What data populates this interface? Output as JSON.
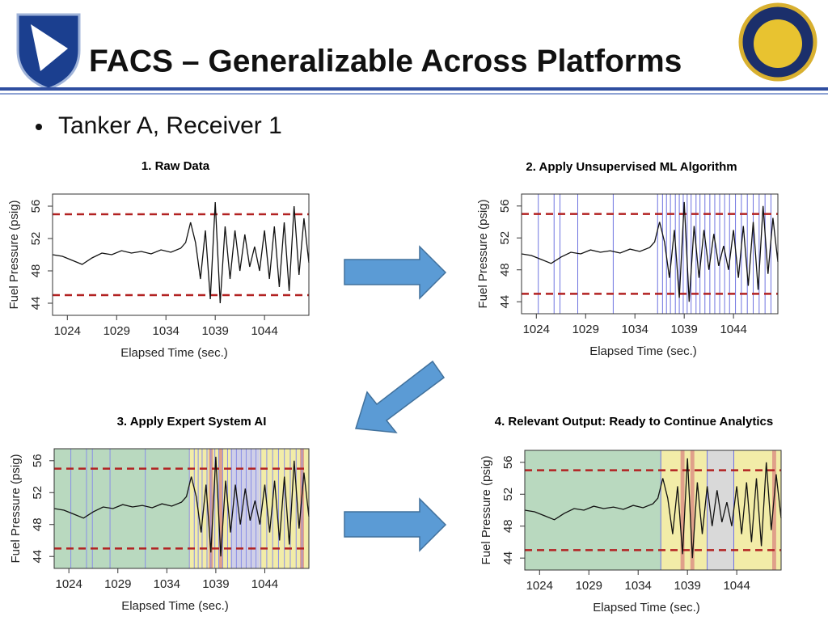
{
  "slide": {
    "title": "FACS – Generalizable Across Platforms",
    "bullet": "Tanker A, Receiver 1"
  },
  "chart_data": [
    {
      "type": "line",
      "title": "1. Raw Data",
      "xlabel": "Elapsed Time (sec.)",
      "ylabel": "Fuel Pressure (psig)",
      "xlim": [
        1022.5,
        1048.5
      ],
      "ylim": [
        42.5,
        57.5
      ],
      "xticks": [
        1024,
        1029,
        1034,
        1039,
        1044
      ],
      "yticks": [
        44,
        48,
        52,
        56
      ],
      "x": [
        1022.5,
        1023.5,
        1024.5,
        1025.5,
        1026.5,
        1027.5,
        1028.5,
        1029.5,
        1030.5,
        1031.5,
        1032.5,
        1033.5,
        1034.5,
        1035.5,
        1036,
        1036.5,
        1037,
        1037.5,
        1038,
        1038.5,
        1039,
        1039.5,
        1040,
        1040.5,
        1041,
        1041.5,
        1042,
        1042.5,
        1043,
        1043.5,
        1044,
        1044.5,
        1045,
        1045.5,
        1046,
        1046.5,
        1047,
        1047.5,
        1048,
        1048.5
      ],
      "series": [
        {
          "color": "#111111",
          "values": [
            50,
            49.8,
            49.3,
            48.8,
            49.6,
            50.2,
            50,
            50.5,
            50.2,
            50.4,
            50.1,
            50.6,
            50.3,
            50.8,
            51.5,
            54,
            51.5,
            47,
            53,
            44.5,
            56.5,
            44,
            53.5,
            47,
            53,
            48,
            52.5,
            48.5,
            51,
            48,
            53,
            47,
            53.5,
            46,
            54,
            45.5,
            56,
            47.5,
            54.5,
            49
          ]
        }
      ],
      "hlines": [
        55,
        45
      ],
      "hline_color": "#b22222"
    },
    {
      "type": "line",
      "title": "2. Apply Unsupervised ML Algorithm",
      "xlabel": "Elapsed Time (sec.)",
      "ylabel": "Fuel Pressure (psig)",
      "xlim": [
        1022.5,
        1048.5
      ],
      "ylim": [
        42.5,
        57.5
      ],
      "xticks": [
        1024,
        1029,
        1034,
        1039,
        1044
      ],
      "yticks": [
        44,
        48,
        52,
        56
      ],
      "x": [
        1022.5,
        1023.5,
        1024.5,
        1025.5,
        1026.5,
        1027.5,
        1028.5,
        1029.5,
        1030.5,
        1031.5,
        1032.5,
        1033.5,
        1034.5,
        1035.5,
        1036,
        1036.5,
        1037,
        1037.5,
        1038,
        1038.5,
        1039,
        1039.5,
        1040,
        1040.5,
        1041,
        1041.5,
        1042,
        1042.5,
        1043,
        1043.5,
        1044,
        1044.5,
        1045,
        1045.5,
        1046,
        1046.5,
        1047,
        1047.5,
        1048,
        1048.5
      ],
      "series": [
        {
          "color": "#111111",
          "values": [
            50,
            49.8,
            49.3,
            48.8,
            49.6,
            50.2,
            50,
            50.5,
            50.2,
            50.4,
            50.1,
            50.6,
            50.3,
            50.8,
            51.5,
            54,
            51.5,
            47,
            53,
            44.5,
            56.5,
            44,
            53.5,
            47,
            53,
            48,
            52.5,
            48.5,
            51,
            48,
            53,
            47,
            53.5,
            46,
            54,
            45.5,
            56,
            47.5,
            54.5,
            49
          ]
        }
      ],
      "hlines": [
        55,
        45
      ],
      "hline_color": "#b22222",
      "vlines": [
        1024.2,
        1025.8,
        1026.4,
        1028.2,
        1031.8,
        1036.3,
        1036.8,
        1037.2,
        1037.6,
        1038.1,
        1038.5,
        1038.9,
        1039.3,
        1039.7,
        1040.2,
        1040.6,
        1041.1,
        1041.6,
        1042.1,
        1042.6,
        1043.1,
        1043.6,
        1044.2,
        1044.8,
        1045.4,
        1046,
        1046.6,
        1047.2,
        1047.8
      ],
      "vline_color": "#6f74e0"
    },
    {
      "type": "line",
      "title": "3. Apply Expert System AI",
      "xlabel": "Elapsed Time (sec.)",
      "ylabel": "Fuel Pressure (psig)",
      "xlim": [
        1022.5,
        1048.5
      ],
      "ylim": [
        42.5,
        57.5
      ],
      "xticks": [
        1024,
        1029,
        1034,
        1039,
        1044
      ],
      "yticks": [
        44,
        48,
        52,
        56
      ],
      "x": [
        1022.5,
        1023.5,
        1024.5,
        1025.5,
        1026.5,
        1027.5,
        1028.5,
        1029.5,
        1030.5,
        1031.5,
        1032.5,
        1033.5,
        1034.5,
        1035.5,
        1036,
        1036.5,
        1037,
        1037.5,
        1038,
        1038.5,
        1039,
        1039.5,
        1040,
        1040.5,
        1041,
        1041.5,
        1042,
        1042.5,
        1043,
        1043.5,
        1044,
        1044.5,
        1045,
        1045.5,
        1046,
        1046.5,
        1047,
        1047.5,
        1048,
        1048.5
      ],
      "series": [
        {
          "color": "#111111",
          "values": [
            50,
            49.8,
            49.3,
            48.8,
            49.6,
            50.2,
            50,
            50.5,
            50.2,
            50.4,
            50.1,
            50.6,
            50.3,
            50.8,
            51.5,
            54,
            51.5,
            47,
            53,
            44.5,
            56.5,
            44,
            53.5,
            47,
            53,
            48,
            52.5,
            48.5,
            51,
            48,
            53,
            47,
            53.5,
            46,
            54,
            45.5,
            56,
            47.5,
            54.5,
            49
          ]
        }
      ],
      "hlines": [
        55,
        45
      ],
      "hline_color": "#b22222",
      "regions": [
        {
          "x0": 1022.5,
          "x1": 1036.3,
          "color": "#b9d9bf"
        },
        {
          "x0": 1036.3,
          "x1": 1040.5,
          "color": "#f2eca8"
        },
        {
          "x0": 1040.5,
          "x1": 1043.5,
          "color": "#cfcfe8"
        },
        {
          "x0": 1043.5,
          "x1": 1048.5,
          "color": "#f2eca8"
        },
        {
          "x0": 1038.3,
          "x1": 1038.7,
          "color": "#e0a08a"
        },
        {
          "x0": 1039.3,
          "x1": 1039.7,
          "color": "#e0a08a"
        },
        {
          "x0": 1047.6,
          "x1": 1048,
          "color": "#e0a08a"
        }
      ],
      "vlines": [
        1024.2,
        1025.8,
        1026.4,
        1028.2,
        1031.8,
        1036.3,
        1036.8,
        1037.2,
        1037.6,
        1038.1,
        1038.5,
        1038.9,
        1039.3,
        1039.7,
        1040.2,
        1040.6,
        1041.1,
        1041.6,
        1042.1,
        1042.6,
        1043.1,
        1043.6,
        1044.2,
        1044.8,
        1045.4,
        1046,
        1046.6,
        1047.2,
        1047.8
      ],
      "vline_color": "#8a8fe6"
    },
    {
      "type": "line",
      "title": "4. Relevant Output: Ready to Continue Analytics",
      "xlabel": "Elapsed Time (sec.)",
      "ylabel": "Fuel Pressure (psig)",
      "xlim": [
        1022.5,
        1048.5
      ],
      "ylim": [
        42.5,
        57.5
      ],
      "xticks": [
        1024,
        1029,
        1034,
        1039,
        1044
      ],
      "yticks": [
        44,
        48,
        52,
        56
      ],
      "x": [
        1022.5,
        1023.5,
        1024.5,
        1025.5,
        1026.5,
        1027.5,
        1028.5,
        1029.5,
        1030.5,
        1031.5,
        1032.5,
        1033.5,
        1034.5,
        1035.5,
        1036,
        1036.5,
        1037,
        1037.5,
        1038,
        1038.5,
        1039,
        1039.5,
        1040,
        1040.5,
        1041,
        1041.5,
        1042,
        1042.5,
        1043,
        1043.5,
        1044,
        1044.5,
        1045,
        1045.5,
        1046,
        1046.5,
        1047,
        1047.5,
        1048,
        1048.5
      ],
      "series": [
        {
          "color": "#111111",
          "values": [
            50,
            49.8,
            49.3,
            48.8,
            49.6,
            50.2,
            50,
            50.5,
            50.2,
            50.4,
            50.1,
            50.6,
            50.3,
            50.8,
            51.5,
            54,
            51.5,
            47,
            53,
            44.5,
            56.5,
            44,
            53.5,
            47,
            53,
            48,
            52.5,
            48.5,
            51,
            48,
            53,
            47,
            53.5,
            46,
            54,
            45.5,
            56,
            47.5,
            54.5,
            49
          ]
        }
      ],
      "hlines": [
        55,
        45
      ],
      "hline_color": "#b22222",
      "regions": [
        {
          "x0": 1022.5,
          "x1": 1036.3,
          "color": "#b9d9bf"
        },
        {
          "x0": 1036.3,
          "x1": 1041,
          "color": "#f2eca8"
        },
        {
          "x0": 1041,
          "x1": 1043.7,
          "color": "#d9d9d9"
        },
        {
          "x0": 1043.7,
          "x1": 1048.5,
          "color": "#f2eca8"
        },
        {
          "x0": 1038.3,
          "x1": 1038.7,
          "color": "#e0a08a"
        },
        {
          "x0": 1039.3,
          "x1": 1039.7,
          "color": "#e0a08a"
        },
        {
          "x0": 1047.6,
          "x1": 1048,
          "color": "#e0a08a"
        }
      ],
      "vlines": [
        1036.3,
        1041,
        1043.7
      ],
      "vline_color": "#6f74e0"
    }
  ]
}
